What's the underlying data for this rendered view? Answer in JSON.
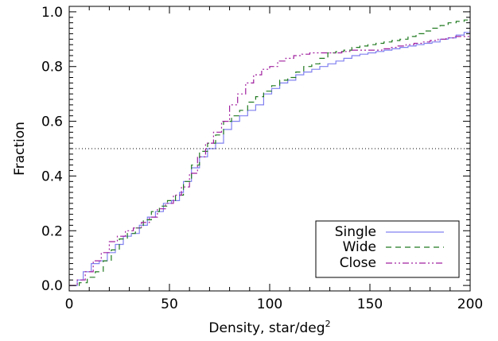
{
  "chart_data": {
    "type": "line",
    "step": true,
    "xlabel": "Density, star/deg",
    "xlabel_superscript": "2",
    "ylabel": "Fraction",
    "xlim": [
      0,
      200
    ],
    "ylim": [
      -0.02,
      1.02
    ],
    "x_ticks": [
      0,
      50,
      100,
      150,
      200
    ],
    "y_ticks": [
      0.0,
      0.2,
      0.4,
      0.6,
      0.8,
      1.0
    ],
    "x_tick_labels": [
      "0",
      "50",
      "100",
      "150",
      "200"
    ],
    "y_tick_labels": [
      "0.0",
      "0.2",
      "0.4",
      "0.6",
      "0.8",
      "1.0"
    ],
    "grid": false,
    "legend_position": "bottom-right",
    "reference_line": {
      "y": 0.5,
      "style": "dotted",
      "color": "#000000"
    },
    "series": [
      {
        "name": "Single",
        "color": "#8080f0",
        "dash": "solid",
        "x": [
          0,
          4,
          7,
          11,
          15,
          19,
          23,
          27,
          31,
          35,
          39,
          43,
          47,
          51,
          55,
          57,
          61,
          65,
          69,
          73,
          77,
          81,
          85,
          89,
          93,
          97,
          101,
          105,
          109,
          113,
          117,
          121,
          125,
          129,
          133,
          137,
          141,
          145,
          149,
          153,
          157,
          161,
          165,
          169,
          173,
          177,
          181,
          185,
          189,
          193,
          197,
          200
        ],
        "y": [
          0.0,
          0.02,
          0.05,
          0.08,
          0.09,
          0.12,
          0.15,
          0.18,
          0.19,
          0.22,
          0.25,
          0.27,
          0.3,
          0.31,
          0.34,
          0.38,
          0.43,
          0.47,
          0.5,
          0.52,
          0.57,
          0.6,
          0.62,
          0.64,
          0.66,
          0.7,
          0.72,
          0.74,
          0.75,
          0.77,
          0.78,
          0.79,
          0.8,
          0.81,
          0.82,
          0.83,
          0.84,
          0.845,
          0.85,
          0.855,
          0.86,
          0.865,
          0.87,
          0.875,
          0.88,
          0.885,
          0.89,
          0.9,
          0.905,
          0.915,
          0.925,
          0.93
        ]
      },
      {
        "name": "Wide",
        "color": "#207a20",
        "dash": "dashed",
        "x": [
          0,
          5,
          9,
          13,
          17,
          21,
          25,
          29,
          33,
          37,
          41,
          45,
          49,
          53,
          57,
          61,
          65,
          69,
          73,
          77,
          81,
          85,
          89,
          93,
          97,
          101,
          105,
          109,
          113,
          117,
          121,
          125,
          129,
          133,
          137,
          141,
          145,
          149,
          153,
          157,
          161,
          165,
          169,
          173,
          177,
          181,
          185,
          189,
          193,
          197,
          200
        ],
        "y": [
          0.0,
          0.01,
          0.03,
          0.05,
          0.09,
          0.13,
          0.17,
          0.19,
          0.21,
          0.24,
          0.27,
          0.29,
          0.31,
          0.33,
          0.38,
          0.44,
          0.49,
          0.52,
          0.55,
          0.6,
          0.62,
          0.64,
          0.67,
          0.69,
          0.71,
          0.73,
          0.75,
          0.76,
          0.78,
          0.8,
          0.81,
          0.83,
          0.85,
          0.855,
          0.86,
          0.87,
          0.875,
          0.88,
          0.885,
          0.89,
          0.895,
          0.9,
          0.91,
          0.92,
          0.93,
          0.94,
          0.95,
          0.96,
          0.965,
          0.97,
          0.97
        ]
      },
      {
        "name": "Close",
        "color": "#a0209f",
        "dash": "dash-dot-dot",
        "x": [
          0,
          4,
          8,
          12,
          16,
          20,
          24,
          28,
          32,
          36,
          40,
          44,
          48,
          52,
          56,
          60,
          64,
          68,
          72,
          76,
          80,
          84,
          88,
          92,
          96,
          100,
          104,
          108,
          112,
          116,
          120,
          124,
          128,
          132,
          136,
          140,
          144,
          148,
          152,
          156,
          160,
          164,
          168,
          172,
          176,
          180,
          184,
          188,
          192,
          196,
          200
        ],
        "y": [
          0.0,
          0.02,
          0.05,
          0.09,
          0.12,
          0.16,
          0.18,
          0.2,
          0.21,
          0.23,
          0.25,
          0.28,
          0.3,
          0.33,
          0.36,
          0.41,
          0.47,
          0.52,
          0.56,
          0.6,
          0.66,
          0.7,
          0.74,
          0.77,
          0.79,
          0.8,
          0.82,
          0.83,
          0.84,
          0.845,
          0.85,
          0.85,
          0.85,
          0.85,
          0.855,
          0.86,
          0.86,
          0.86,
          0.86,
          0.865,
          0.87,
          0.875,
          0.88,
          0.885,
          0.89,
          0.895,
          0.9,
          0.905,
          0.91,
          0.91,
          0.915
        ]
      }
    ]
  }
}
